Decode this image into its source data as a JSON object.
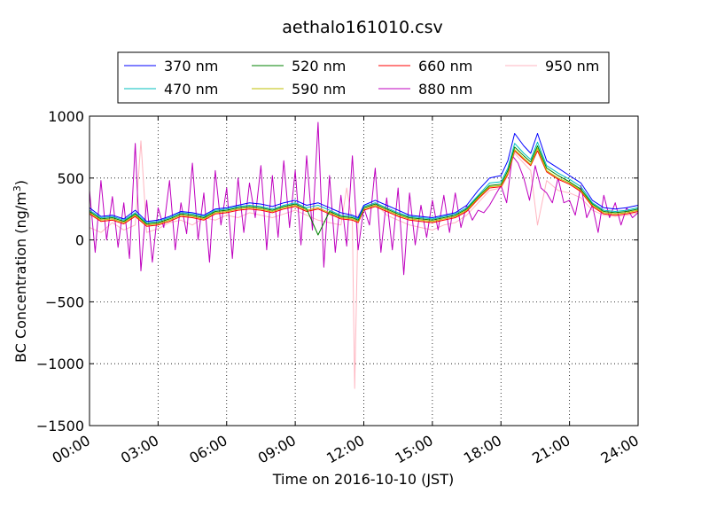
{
  "chart_data": {
    "type": "line",
    "title": "aethalo161010.csv",
    "xlabel": "Time on 2016-10-10 (JST)",
    "ylabel_main": "BC Concentration (ng/m",
    "ylabel_sup": "3",
    "ylabel_tail": ")",
    "xlim": [
      0,
      24
    ],
    "ylim": [
      -1500,
      1000
    ],
    "grid": true,
    "legend_placement": "top-center",
    "x_ticks": [
      {
        "value": 0,
        "label": "00:00"
      },
      {
        "value": 3,
        "label": "03:00"
      },
      {
        "value": 6,
        "label": "06:00"
      },
      {
        "value": 9,
        "label": "09:00"
      },
      {
        "value": 12,
        "label": "12:00"
      },
      {
        "value": 15,
        "label": "15:00"
      },
      {
        "value": 18,
        "label": "18:00"
      },
      {
        "value": 21,
        "label": "21:00"
      },
      {
        "value": 24,
        "label": "24:00"
      }
    ],
    "y_ticks": [
      {
        "value": 1000,
        "label": "1000"
      },
      {
        "value": 500,
        "label": "500"
      },
      {
        "value": 0,
        "label": "0"
      },
      {
        "value": -500,
        "label": "−500"
      },
      {
        "value": -1000,
        "label": "−1000"
      },
      {
        "value": -1500,
        "label": "−1500"
      }
    ],
    "series": [
      {
        "name": "370 nm",
        "color": "#0000ff",
        "x": [
          0,
          0.5,
          1,
          1.5,
          2,
          2.5,
          3,
          3.5,
          4,
          4.5,
          5,
          5.5,
          6,
          6.5,
          7,
          7.5,
          8,
          8.5,
          9,
          9.5,
          10,
          10.5,
          11,
          11.5,
          11.75,
          12,
          12.5,
          13,
          13.5,
          14,
          14.5,
          15,
          15.5,
          16,
          16.5,
          17,
          17.5,
          18,
          18.3,
          18.6,
          19,
          19.3,
          19.6,
          20,
          20.5,
          21,
          21.5,
          22,
          22.5,
          23,
          23.5,
          24
        ],
        "y": [
          260,
          190,
          200,
          170,
          240,
          150,
          160,
          190,
          230,
          220,
          200,
          250,
          260,
          280,
          300,
          290,
          270,
          300,
          320,
          280,
          300,
          260,
          220,
          200,
          180,
          280,
          320,
          280,
          240,
          200,
          190,
          180,
          200,
          220,
          280,
          400,
          500,
          520,
          640,
          860,
          760,
          700,
          860,
          640,
          580,
          520,
          460,
          320,
          260,
          250,
          260,
          280
        ]
      },
      {
        "name": "470 nm",
        "color": "#00bfbf",
        "x": [
          0,
          0.5,
          1,
          1.5,
          2,
          2.5,
          3,
          3.5,
          4,
          4.5,
          5,
          5.5,
          6,
          6.5,
          7,
          7.5,
          8,
          8.5,
          9,
          9.5,
          10,
          10.5,
          11,
          11.5,
          11.75,
          12,
          12.5,
          13,
          13.5,
          14,
          14.5,
          15,
          15.5,
          16,
          16.5,
          17,
          17.5,
          18,
          18.3,
          18.6,
          19,
          19.3,
          19.6,
          20,
          20.5,
          21,
          21.5,
          22,
          22.5,
          23,
          23.5,
          24
        ],
        "y": [
          240,
          180,
          190,
          160,
          220,
          140,
          150,
          180,
          220,
          210,
          190,
          240,
          250,
          270,
          280,
          270,
          250,
          280,
          300,
          260,
          280,
          240,
          200,
          190,
          170,
          270,
          300,
          260,
          220,
          190,
          180,
          170,
          190,
          210,
          260,
          360,
          460,
          470,
          580,
          780,
          700,
          650,
          790,
          600,
          540,
          490,
          430,
          300,
          240,
          230,
          240,
          260
        ]
      },
      {
        "name": "520 nm",
        "color": "#008000",
        "x": [
          0,
          0.5,
          1,
          1.5,
          2,
          2.5,
          3,
          3.5,
          4,
          4.5,
          5,
          5.5,
          6,
          6.5,
          7,
          7.5,
          8,
          8.5,
          9,
          9.5,
          10,
          10.5,
          11,
          11.5,
          11.75,
          12,
          12.5,
          13,
          13.5,
          14,
          14.5,
          15,
          15.5,
          16,
          16.5,
          17,
          17.5,
          18,
          18.3,
          18.6,
          19,
          19.3,
          19.6,
          20,
          20.5,
          21,
          21.5,
          22,
          22.5,
          23,
          23.5,
          24
        ],
        "y": [
          230,
          170,
          180,
          150,
          210,
          130,
          140,
          170,
          210,
          200,
          180,
          230,
          240,
          260,
          270,
          260,
          240,
          270,
          290,
          250,
          40,
          230,
          190,
          180,
          160,
          260,
          290,
          250,
          210,
          180,
          170,
          160,
          180,
          200,
          250,
          350,
          440,
          450,
          560,
          750,
          680,
          630,
          760,
          580,
          520,
          470,
          410,
          290,
          230,
          220,
          230,
          250
        ]
      },
      {
        "name": "590 nm",
        "color": "#bfbf00",
        "x": [
          0,
          0.5,
          1,
          1.5,
          2,
          2.5,
          3,
          3.5,
          4,
          4.5,
          5,
          5.5,
          6,
          6.5,
          7,
          7.5,
          8,
          8.5,
          9,
          9.5,
          10,
          10.5,
          11,
          11.5,
          11.75,
          12,
          12.5,
          13,
          13.5,
          14,
          14.5,
          15,
          15.5,
          16,
          16.5,
          17,
          17.5,
          18,
          18.3,
          18.6,
          19,
          19.3,
          19.6,
          20,
          20.5,
          21,
          21.5,
          22,
          22.5,
          23,
          23.5,
          24
        ],
        "y": [
          220,
          160,
          170,
          140,
          200,
          120,
          130,
          160,
          200,
          190,
          170,
          220,
          230,
          250,
          260,
          250,
          230,
          260,
          280,
          240,
          260,
          220,
          180,
          170,
          150,
          250,
          280,
          240,
          200,
          170,
          160,
          150,
          170,
          190,
          240,
          340,
          430,
          440,
          540,
          730,
          660,
          610,
          740,
          560,
          500,
          460,
          400,
          280,
          220,
          210,
          220,
          240
        ]
      },
      {
        "name": "660 nm",
        "color": "#ff0000",
        "x": [
          0,
          0.5,
          1,
          1.5,
          2,
          2.5,
          3,
          3.5,
          4,
          4.5,
          5,
          5.5,
          6,
          6.5,
          7,
          7.5,
          8,
          8.5,
          9,
          9.5,
          10,
          10.5,
          11,
          11.5,
          11.75,
          12,
          12.5,
          13,
          13.5,
          14,
          14.5,
          15,
          15.5,
          16,
          16.5,
          17,
          17.5,
          18,
          18.3,
          18.6,
          19,
          19.3,
          19.6,
          20,
          20.5,
          21,
          21.5,
          22,
          22.5,
          23,
          23.5,
          24
        ],
        "y": [
          210,
          150,
          160,
          130,
          190,
          110,
          120,
          150,
          190,
          180,
          160,
          210,
          220,
          240,
          250,
          240,
          220,
          250,
          270,
          230,
          250,
          210,
          170,
          160,
          140,
          240,
          270,
          230,
          190,
          160,
          150,
          140,
          160,
          180,
          230,
          330,
          420,
          430,
          530,
          720,
          650,
          600,
          720,
          550,
          490,
          450,
          390,
          270,
          210,
          200,
          210,
          230
        ]
      },
      {
        "name": "880 nm",
        "color": "#bf00bf",
        "x": [
          0,
          0.25,
          0.5,
          0.75,
          1,
          1.25,
          1.5,
          1.75,
          2,
          2.25,
          2.5,
          2.75,
          3,
          3.25,
          3.5,
          3.75,
          4,
          4.25,
          4.5,
          4.75,
          5,
          5.25,
          5.5,
          5.75,
          6,
          6.25,
          6.5,
          6.75,
          7,
          7.25,
          7.5,
          7.75,
          8,
          8.25,
          8.5,
          8.75,
          9,
          9.25,
          9.5,
          9.75,
          10,
          10.25,
          10.5,
          10.75,
          11,
          11.25,
          11.5,
          11.75,
          12,
          12.25,
          12.5,
          12.75,
          13,
          13.25,
          13.5,
          13.75,
          14,
          14.25,
          14.5,
          14.75,
          15,
          15.25,
          15.5,
          15.75,
          16,
          16.25,
          16.5,
          16.75,
          17,
          17.25,
          17.5,
          17.75,
          18,
          18.25,
          18.5,
          18.75,
          19,
          19.25,
          19.5,
          19.75,
          20,
          20.25,
          20.5,
          20.75,
          21,
          21.25,
          21.5,
          21.75,
          22,
          22.25,
          22.5,
          22.75,
          23,
          23.25,
          23.5,
          23.75,
          24
        ],
        "y": [
          400,
          -100,
          480,
          0,
          350,
          -60,
          300,
          -150,
          780,
          -250,
          320,
          -180,
          260,
          100,
          480,
          -80,
          300,
          50,
          620,
          0,
          380,
          -180,
          560,
          120,
          420,
          -150,
          500,
          60,
          460,
          180,
          600,
          -80,
          520,
          20,
          640,
          100,
          560,
          -40,
          680,
          80,
          950,
          -220,
          520,
          -100,
          360,
          -50,
          680,
          -80,
          260,
          120,
          580,
          -100,
          340,
          -80,
          420,
          -280,
          380,
          -40,
          280,
          20,
          320,
          80,
          360,
          60,
          380,
          100,
          280,
          160,
          240,
          220,
          280,
          360,
          440,
          300,
          680,
          620,
          500,
          320,
          600,
          420,
          380,
          300,
          500,
          300,
          320,
          200,
          440,
          180,
          280,
          60,
          360,
          180,
          300,
          120,
          260,
          180,
          220
        ]
      },
      {
        "name": "950 nm",
        "color": "#ffb6c1",
        "x": [
          0,
          0.5,
          1,
          1.5,
          2,
          2.25,
          2.5,
          3,
          3.5,
          4,
          4.5,
          5,
          5.5,
          6,
          6.5,
          7,
          7.5,
          8,
          8.5,
          9,
          9.5,
          10,
          10.5,
          11,
          11.25,
          11.5,
          11.6,
          11.75,
          12,
          12.5,
          13,
          13.5,
          14,
          14.5,
          15,
          15.5,
          16,
          16.5,
          17,
          17.5,
          18,
          18.3,
          18.6,
          19,
          19.3,
          19.6,
          20,
          20.5,
          21,
          21.5,
          22,
          22.5,
          23,
          23.5,
          24
        ],
        "y": [
          100,
          60,
          140,
          80,
          120,
          800,
          60,
          90,
          140,
          160,
          120,
          180,
          160,
          200,
          180,
          220,
          200,
          180,
          210,
          240,
          200,
          160,
          140,
          120,
          420,
          140,
          -1200,
          200,
          260,
          300,
          200,
          160,
          120,
          100,
          80,
          120,
          140,
          200,
          300,
          400,
          420,
          520,
          700,
          620,
          560,
          120,
          480,
          400,
          380,
          340,
          240,
          200,
          190,
          200,
          220
        ]
      }
    ]
  }
}
